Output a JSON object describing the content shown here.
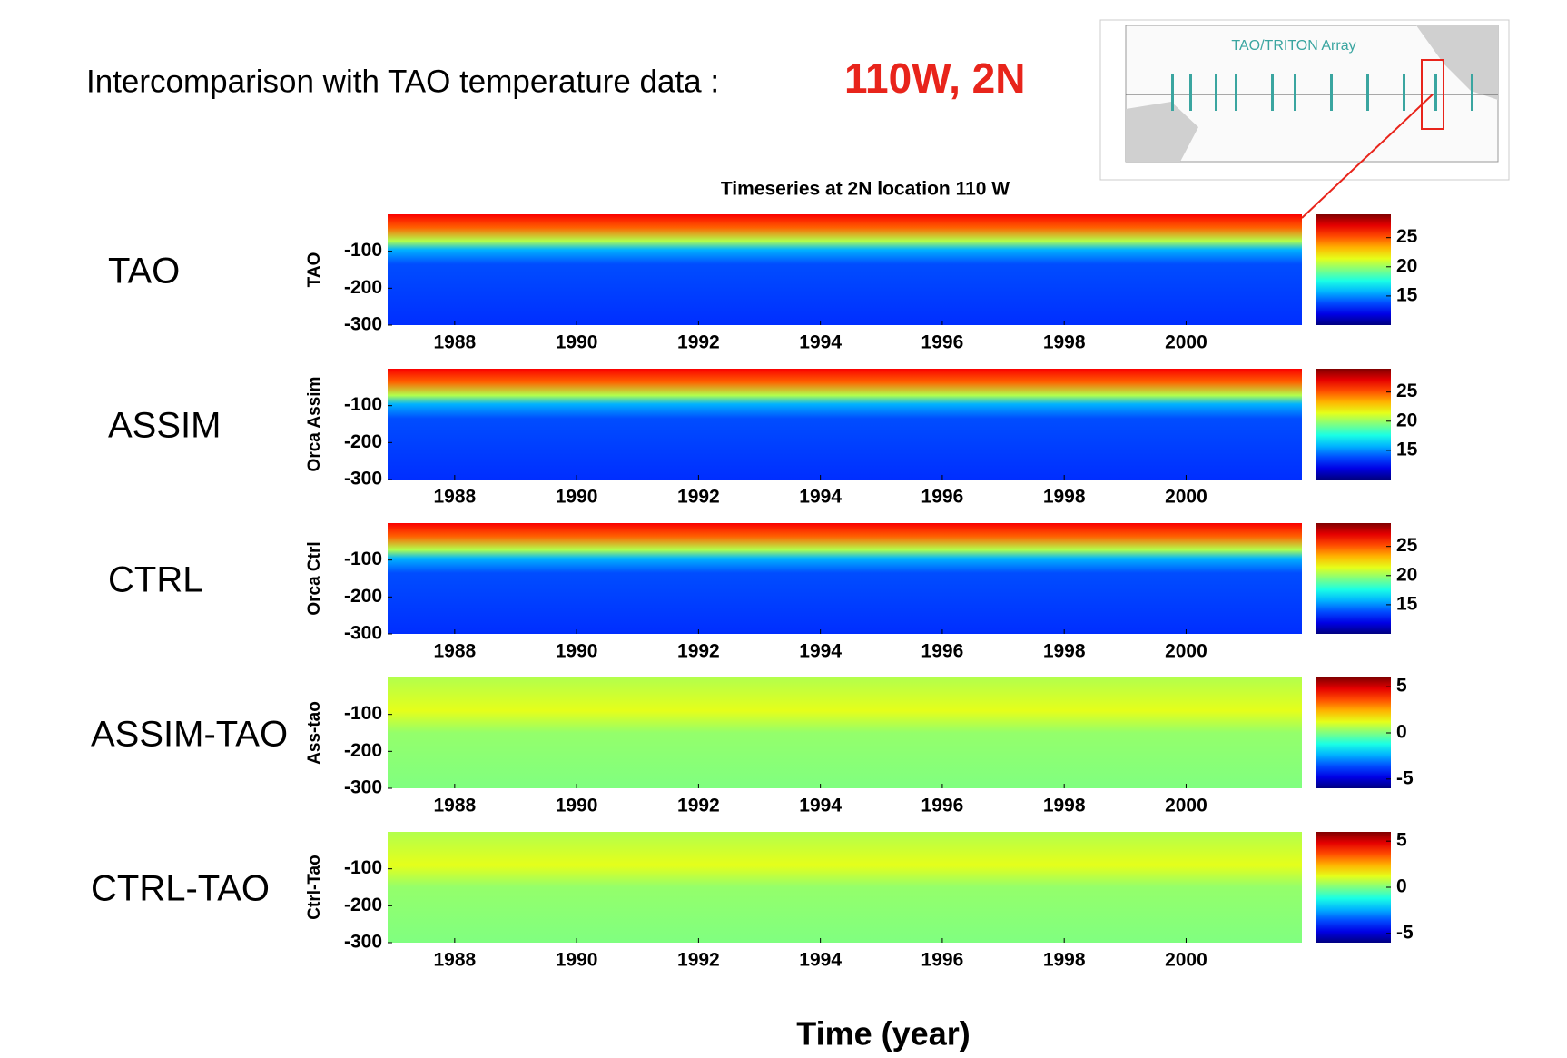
{
  "header": {
    "title": "Intercomparison with TAO temperature data :",
    "location": "110W, 2N"
  },
  "inset": {
    "title": "TAO/TRITON Array"
  },
  "plot_title": "Timeseries at 2N location 110 W",
  "xlabel": "Time (year)",
  "chart_data": [
    {
      "type": "heatmap",
      "label": "TAO",
      "ylabel": "TAO",
      "xlim": [
        1986.9,
        2001.9
      ],
      "xticks": [
        1988,
        1990,
        1992,
        1994,
        1996,
        1998,
        2000
      ],
      "ylim": [
        -300,
        0
      ],
      "yticks": [
        -100,
        -200,
        -300
      ],
      "clim": [
        10,
        29
      ],
      "colorbar_ticks": [
        25,
        20,
        15
      ],
      "colormap": "jet"
    },
    {
      "type": "heatmap",
      "label": "ASSIM",
      "ylabel": "Orca Assim",
      "xlim": [
        1986.9,
        2001.9
      ],
      "xticks": [
        1988,
        1990,
        1992,
        1994,
        1996,
        1998,
        2000
      ],
      "ylim": [
        -300,
        0
      ],
      "yticks": [
        -100,
        -200,
        -300
      ],
      "clim": [
        10,
        29
      ],
      "colorbar_ticks": [
        25,
        20,
        15
      ],
      "colormap": "jet"
    },
    {
      "type": "heatmap",
      "label": "CTRL",
      "ylabel": "Orca Ctrl",
      "xlim": [
        1986.9,
        2001.9
      ],
      "xticks": [
        1988,
        1990,
        1992,
        1994,
        1996,
        1998,
        2000
      ],
      "ylim": [
        -300,
        0
      ],
      "yticks": [
        -100,
        -200,
        -300
      ],
      "clim": [
        10,
        29
      ],
      "colorbar_ticks": [
        25,
        20,
        15
      ],
      "colormap": "jet"
    },
    {
      "type": "heatmap",
      "label": "ASSIM-TAO",
      "ylabel": "Ass-tao",
      "xlim": [
        1986.9,
        2001.9
      ],
      "xticks": [
        1988,
        1990,
        1992,
        1994,
        1996,
        1998,
        2000
      ],
      "ylim": [
        -300,
        0
      ],
      "yticks": [
        -100,
        -200,
        -300
      ],
      "clim": [
        -6,
        6
      ],
      "colorbar_ticks": [
        5,
        0,
        -5
      ],
      "colormap": "jet"
    },
    {
      "type": "heatmap",
      "label": "CTRL-TAO",
      "ylabel": "Ctrl-Tao",
      "xlim": [
        1986.9,
        2001.9
      ],
      "xticks": [
        1988,
        1990,
        1992,
        1994,
        1996,
        1998,
        2000
      ],
      "ylim": [
        -300,
        0
      ],
      "yticks": [
        -100,
        -200,
        -300
      ],
      "clim": [
        -6,
        6
      ],
      "colorbar_ticks": [
        5,
        0,
        -5
      ],
      "colormap": "jet"
    }
  ]
}
